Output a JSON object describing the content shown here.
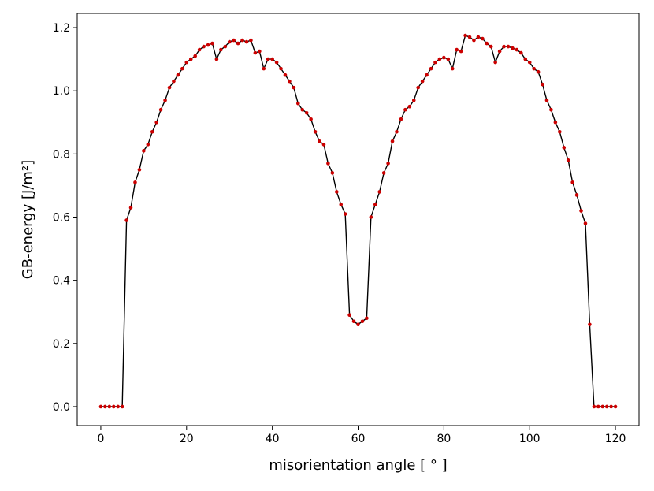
{
  "chart_data": {
    "type": "line",
    "title": "",
    "xlabel": "misorientation angle [$^\\circ$]",
    "ylabel": "GB-energy [$J/m^2$]",
    "xlabel_text": "misorientation angle [ ° ]",
    "ylabel_text": "GB-energy [J/m²]",
    "xlim": [
      -5.5,
      125.5
    ],
    "ylim": [
      -0.06,
      1.245
    ],
    "xticks": [
      0,
      20,
      40,
      60,
      80,
      100,
      120
    ],
    "yticks": [
      0.0,
      0.2,
      0.4,
      0.6,
      0.8,
      1.0,
      1.2
    ],
    "xtick_labels": [
      "0",
      "20",
      "40",
      "60",
      "80",
      "100",
      "120"
    ],
    "ytick_labels": [
      "0.0",
      "0.2",
      "0.4",
      "0.6",
      "0.8",
      "1.0",
      "1.2"
    ],
    "grid": false,
    "legend": "none",
    "line_color": "#000000",
    "marker_color": "#cc0000",
    "x": [
      0,
      1,
      2,
      3,
      4,
      5,
      6,
      7,
      8,
      9,
      10,
      11,
      12,
      13,
      14,
      15,
      16,
      17,
      18,
      19,
      20,
      21,
      22,
      23,
      24,
      25,
      26,
      27,
      28,
      29,
      30,
      31,
      32,
      33,
      34,
      35,
      36,
      37,
      38,
      39,
      40,
      41,
      42,
      43,
      44,
      45,
      46,
      47,
      48,
      49,
      50,
      51,
      52,
      53,
      54,
      55,
      56,
      57,
      58,
      59,
      60,
      61,
      62,
      63,
      64,
      65,
      66,
      67,
      68,
      69,
      70,
      71,
      72,
      73,
      74,
      75,
      76,
      77,
      78,
      79,
      80,
      81,
      82,
      83,
      84,
      85,
      86,
      87,
      88,
      89,
      90,
      91,
      92,
      93,
      94,
      95,
      96,
      97,
      98,
      99,
      100,
      101,
      102,
      103,
      104,
      105,
      106,
      107,
      108,
      109,
      110,
      111,
      112,
      113,
      114,
      115,
      116,
      117,
      118,
      119,
      120
    ],
    "y": [
      0.0,
      0.0,
      0.0,
      0.0,
      0.0,
      0.0,
      0.59,
      0.63,
      0.71,
      0.75,
      0.81,
      0.83,
      0.87,
      0.9,
      0.94,
      0.97,
      1.01,
      1.03,
      1.05,
      1.07,
      1.09,
      1.1,
      1.11,
      1.13,
      1.14,
      1.145,
      1.15,
      1.1,
      1.13,
      1.14,
      1.155,
      1.16,
      1.15,
      1.16,
      1.155,
      1.16,
      1.12,
      1.125,
      1.07,
      1.1,
      1.1,
      1.09,
      1.07,
      1.05,
      1.03,
      1.01,
      0.96,
      0.94,
      0.93,
      0.91,
      0.87,
      0.84,
      0.83,
      0.77,
      0.74,
      0.68,
      0.64,
      0.61,
      0.29,
      0.27,
      0.26,
      0.27,
      0.28,
      0.6,
      0.64,
      0.68,
      0.74,
      0.77,
      0.84,
      0.87,
      0.91,
      0.94,
      0.95,
      0.97,
      1.01,
      1.03,
      1.05,
      1.07,
      1.09,
      1.1,
      1.105,
      1.1,
      1.07,
      1.13,
      1.125,
      1.175,
      1.17,
      1.16,
      1.17,
      1.165,
      1.15,
      1.14,
      1.09,
      1.125,
      1.14,
      1.14,
      1.135,
      1.13,
      1.12,
      1.1,
      1.09,
      1.07,
      1.06,
      1.02,
      0.97,
      0.94,
      0.9,
      0.87,
      0.82,
      0.78,
      0.71,
      0.67,
      0.62,
      0.58,
      0.26,
      0.0,
      0.0,
      0.0,
      0.0,
      0.0,
      0.0
    ]
  }
}
